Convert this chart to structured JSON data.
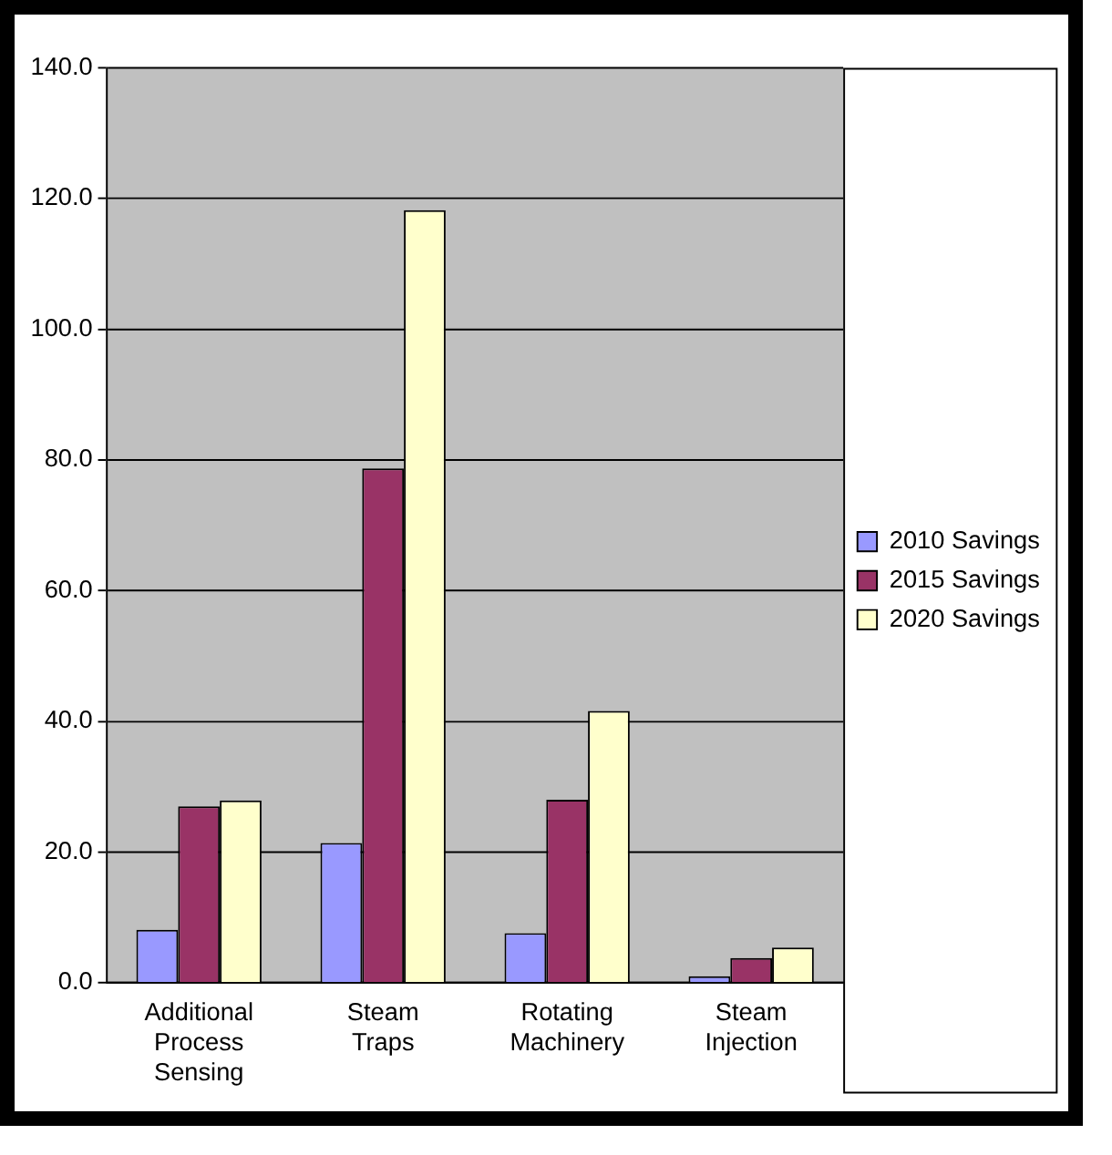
{
  "chart_data": {
    "type": "bar",
    "categories": [
      "Additional Process Sensing",
      "Steam Traps",
      "Rotating Machinery",
      "Steam Injection"
    ],
    "series": [
      {
        "name": "2010 Savings",
        "color": "#9999ff",
        "values": [
          8.1,
          21.4,
          7.6,
          1.0
        ]
      },
      {
        "name": "2015 Savings",
        "color": "#993366",
        "values": [
          27.0,
          78.7,
          28.0,
          3.8
        ]
      },
      {
        "name": "2020 Savings",
        "color": "#ffffcc",
        "values": [
          27.9,
          118.2,
          41.6,
          5.4
        ]
      }
    ],
    "ylim": [
      0,
      140
    ],
    "yticks": [
      {
        "value": 0,
        "label": "0.0"
      },
      {
        "value": 20,
        "label": "20.0"
      },
      {
        "value": 40,
        "label": "40.0"
      },
      {
        "value": 60,
        "label": "60.0"
      },
      {
        "value": 80,
        "label": "80.0"
      },
      {
        "value": 100,
        "label": "100.0"
      },
      {
        "value": 120,
        "label": "120.0"
      },
      {
        "value": 140,
        "label": "140.0"
      }
    ],
    "grid": "y",
    "legend": "right"
  }
}
